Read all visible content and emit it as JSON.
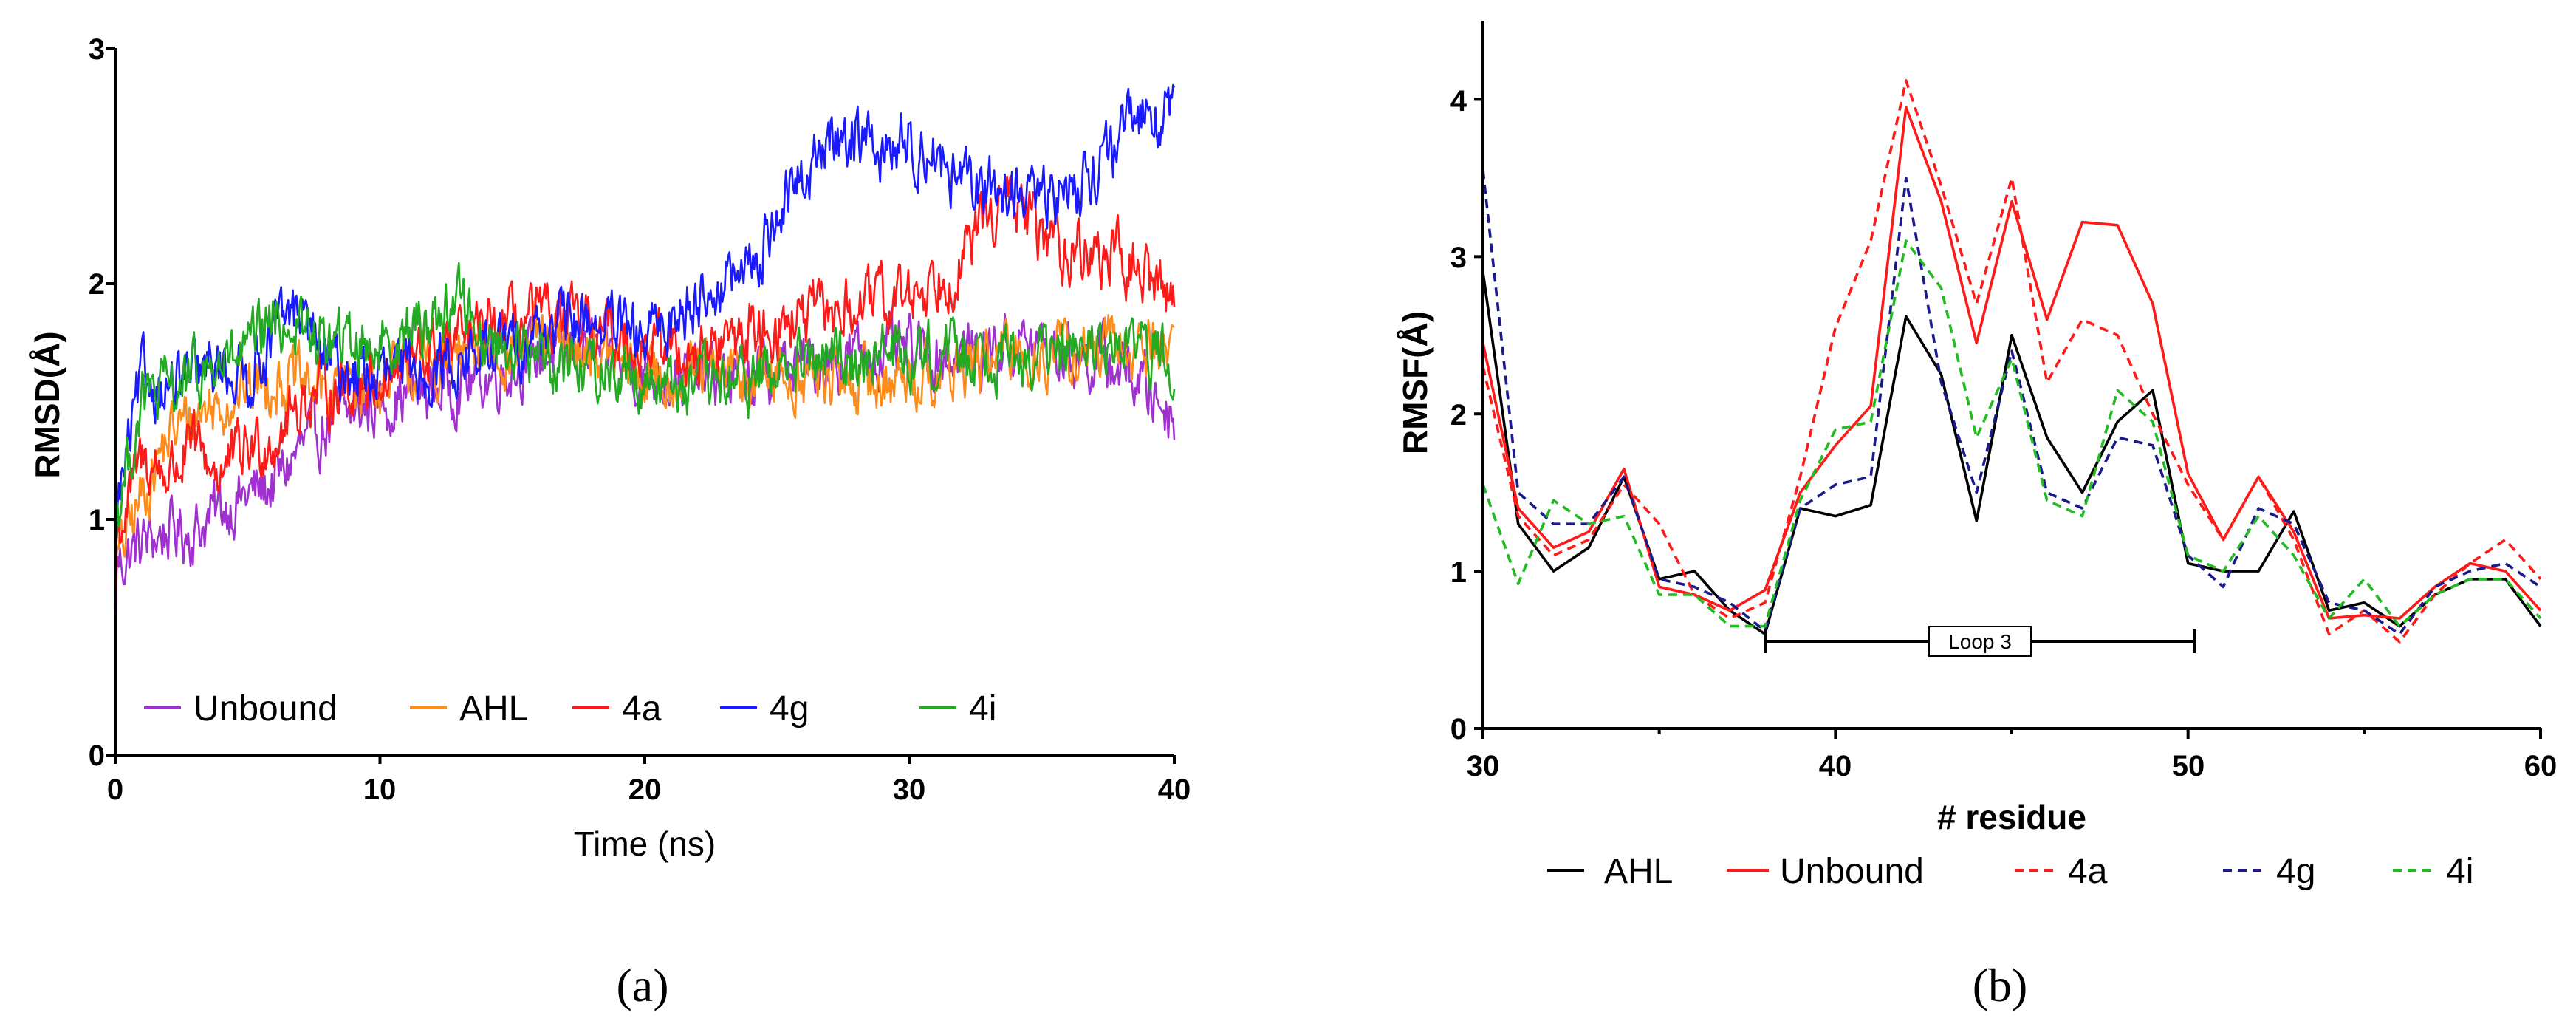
{
  "chart_data": [
    {
      "type": "line",
      "panel_label": "(a)",
      "xlabel": "Time (ns)",
      "ylabel": "RMSD(Å)",
      "xlim": [
        0,
        40
      ],
      "ylim": [
        0,
        3
      ],
      "xticks": [
        "0",
        "10",
        "20",
        "30",
        "40"
      ],
      "yticks": [
        "0",
        "1",
        "2",
        "3"
      ],
      "legend_position": "bottom-left",
      "series": [
        {
          "name": "Unbound",
          "color": "#a030d0",
          "x": [
            0,
            1,
            2,
            3,
            4,
            5,
            6,
            7,
            8,
            9,
            10,
            12,
            14,
            16,
            18,
            20,
            22,
            24,
            26,
            28,
            30,
            32,
            34,
            36,
            38,
            40
          ],
          "y": [
            0.8,
            0.9,
            0.95,
            0.95,
            1.05,
            1.1,
            1.15,
            1.3,
            1.4,
            1.45,
            1.5,
            1.55,
            1.6,
            1.7,
            1.72,
            1.62,
            1.6,
            1.6,
            1.65,
            1.7,
            1.7,
            1.7,
            1.75,
            1.7,
            1.65,
            1.45
          ]
        },
        {
          "name": "AHL",
          "color": "#ff8c1a",
          "x": [
            0,
            1,
            2,
            3,
            4,
            5,
            6,
            8,
            10,
            12,
            14,
            16,
            18,
            20,
            22,
            24,
            26,
            28,
            30,
            32,
            34,
            36,
            38,
            40
          ],
          "y": [
            0.8,
            1.1,
            1.35,
            1.45,
            1.5,
            1.55,
            1.6,
            1.55,
            1.6,
            1.65,
            1.7,
            1.75,
            1.72,
            1.6,
            1.62,
            1.6,
            1.6,
            1.58,
            1.6,
            1.65,
            1.7,
            1.7,
            1.72,
            1.75
          ]
        },
        {
          "name": "4a",
          "color": "#ff1a1a",
          "x": [
            0,
            1,
            2,
            3,
            4,
            5,
            6,
            7,
            8,
            10,
            12,
            14,
            16,
            18,
            20,
            22,
            24,
            26,
            28,
            30,
            32,
            33,
            34,
            35,
            36,
            38,
            40
          ],
          "y": [
            0.9,
            1.25,
            1.2,
            1.3,
            1.2,
            1.3,
            1.35,
            1.5,
            1.55,
            1.6,
            1.7,
            1.8,
            1.85,
            1.8,
            1.75,
            1.7,
            1.8,
            1.85,
            1.9,
            1.95,
            2.1,
            2.3,
            2.35,
            2.2,
            2.15,
            2.1,
            1.95
          ]
        },
        {
          "name": "4g",
          "color": "#1a1aff",
          "x": [
            0,
            1,
            2,
            3,
            4,
            5,
            6,
            7,
            8,
            10,
            12,
            14,
            16,
            18,
            20,
            22,
            24,
            25,
            26,
            27,
            28,
            29,
            30,
            31,
            32,
            33,
            34,
            35,
            36,
            37,
            38,
            39,
            40
          ],
          "y": [
            1.0,
            1.6,
            1.55,
            1.6,
            1.65,
            1.6,
            1.8,
            1.9,
            1.65,
            1.6,
            1.65,
            1.7,
            1.8,
            1.85,
            1.75,
            1.95,
            2.05,
            2.3,
            2.45,
            2.6,
            2.65,
            2.55,
            2.6,
            2.55,
            2.4,
            2.4,
            2.4,
            2.35,
            2.4,
            2.5,
            2.6,
            2.75,
            2.7
          ]
        },
        {
          "name": "4i",
          "color": "#22aa22",
          "x": [
            0,
            1,
            2,
            3,
            4,
            5,
            6,
            7,
            8,
            10,
            12,
            13,
            14,
            16,
            18,
            20,
            22,
            24,
            26,
            28,
            30,
            32,
            34,
            36,
            38,
            40
          ],
          "y": [
            1.0,
            1.5,
            1.55,
            1.6,
            1.65,
            1.7,
            1.85,
            1.8,
            1.75,
            1.75,
            1.85,
            1.95,
            1.75,
            1.7,
            1.65,
            1.6,
            1.55,
            1.6,
            1.65,
            1.7,
            1.7,
            1.72,
            1.7,
            1.7,
            1.72,
            1.7
          ]
        }
      ]
    },
    {
      "type": "line",
      "panel_label": "(b)",
      "xlabel": "# residue",
      "ylabel": "RMSF(Å)",
      "xlim": [
        30,
        60
      ],
      "ylim": [
        0,
        4.5
      ],
      "xticks": [
        "30",
        "40",
        "50",
        "60"
      ],
      "yticks": [
        "0",
        "1",
        "2",
        "3",
        "4"
      ],
      "legend_position": "bottom",
      "annotation": {
        "label": "Loop 3",
        "from": 38,
        "to": 50.2,
        "y": 0.55
      },
      "x": [
        30,
        31,
        32,
        33,
        34,
        35,
        36,
        37,
        38,
        39,
        40,
        41,
        42,
        43,
        44,
        45,
        46,
        47,
        48,
        49,
        50,
        51,
        52,
        53,
        54,
        55,
        56,
        57,
        58,
        59,
        60
      ],
      "series": [
        {
          "name": "AHL",
          "color": "#000000",
          "dash": "solid",
          "y": [
            2.9,
            1.3,
            1.0,
            1.15,
            1.6,
            0.95,
            1.0,
            0.75,
            0.6,
            1.4,
            1.35,
            1.42,
            2.62,
            2.25,
            1.32,
            2.5,
            1.85,
            1.5,
            1.95,
            2.15,
            1.05,
            1.0,
            1.0,
            1.38,
            0.75,
            0.8,
            0.65,
            0.85,
            0.95,
            0.95,
            0.65
          ]
        },
        {
          "name": "Unbound",
          "color": "#ff1a1a",
          "dash": "solid",
          "y": [
            2.45,
            1.4,
            1.15,
            1.25,
            1.65,
            0.9,
            0.85,
            0.75,
            0.88,
            1.5,
            1.8,
            2.05,
            3.95,
            3.35,
            2.45,
            3.35,
            2.6,
            3.22,
            3.2,
            2.7,
            1.62,
            1.2,
            1.6,
            1.25,
            0.7,
            0.72,
            0.7,
            0.9,
            1.05,
            1.0,
            0.75
          ]
        },
        {
          "name": "4a",
          "color": "#ff1a1a",
          "dash": "dash",
          "y": [
            2.3,
            1.35,
            1.1,
            1.2,
            1.55,
            1.3,
            0.85,
            0.7,
            0.8,
            1.6,
            2.55,
            3.1,
            4.12,
            3.45,
            2.7,
            3.5,
            2.2,
            2.6,
            2.5,
            2.0,
            1.55,
            1.2,
            1.6,
            1.2,
            0.6,
            0.75,
            0.55,
            0.85,
            1.05,
            1.2,
            0.95
          ]
        },
        {
          "name": "4g",
          "color": "#1a1a8c",
          "dash": "dash",
          "y": [
            3.55,
            1.5,
            1.3,
            1.3,
            1.6,
            0.95,
            0.9,
            0.8,
            0.62,
            1.4,
            1.55,
            1.6,
            3.5,
            2.2,
            1.5,
            2.4,
            1.5,
            1.4,
            1.85,
            1.8,
            1.1,
            0.9,
            1.4,
            1.3,
            0.8,
            0.75,
            0.6,
            0.9,
            1.0,
            1.05,
            0.9
          ]
        },
        {
          "name": "4i",
          "color": "#22bb22",
          "dash": "dash",
          "y": [
            1.55,
            0.92,
            1.45,
            1.3,
            1.35,
            0.85,
            0.85,
            0.65,
            0.65,
            1.45,
            1.9,
            1.95,
            3.1,
            2.8,
            1.85,
            2.35,
            1.45,
            1.35,
            2.15,
            1.95,
            1.1,
            1.0,
            1.35,
            1.1,
            0.7,
            0.95,
            0.65,
            0.85,
            0.95,
            0.95,
            0.7
          ]
        }
      ]
    }
  ]
}
